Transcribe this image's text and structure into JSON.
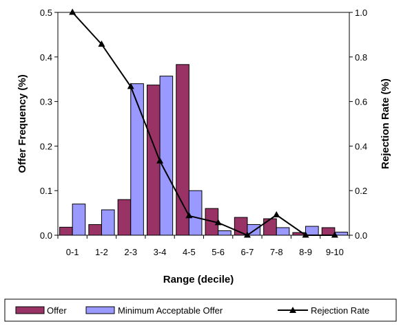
{
  "chart_data": {
    "type": "bar",
    "categories": [
      "0-1",
      "1-2",
      "2-3",
      "3-4",
      "4-5",
      "5-6",
      "6-7",
      "7-8",
      "8-9",
      "9-10"
    ],
    "series": [
      {
        "name": "Offer",
        "type": "bar",
        "axis": "left",
        "color": "#993366",
        "values": [
          0.018,
          0.024,
          0.08,
          0.337,
          0.383,
          0.06,
          0.04,
          0.037,
          0.006,
          0.017
        ]
      },
      {
        "name": "Minimum Acceptable Offer",
        "type": "bar",
        "axis": "left",
        "color": "#9999ff",
        "values": [
          0.07,
          0.057,
          0.34,
          0.357,
          0.1,
          0.01,
          0.024,
          0.017,
          0.02,
          0.007
        ]
      },
      {
        "name": "Rejection Rate",
        "type": "line",
        "axis": "right",
        "color": "#000000",
        "marker": "triangle",
        "values": [
          1.0,
          0.857,
          0.667,
          0.333,
          0.087,
          0.056,
          0.0,
          0.091,
          0.0,
          0.0
        ]
      }
    ],
    "xlabel": "Range (decile)",
    "ylabel": "Offer Frequency (%)",
    "y2label": "Rejection Rate (%)",
    "ylim": [
      0,
      0.5
    ],
    "y2lim": [
      0,
      1.0
    ],
    "yticks": [
      "0.0",
      "0.1",
      "0.2",
      "0.3",
      "0.4",
      "0.5"
    ],
    "y2ticks": [
      "0.0",
      "0.2",
      "0.4",
      "0.6",
      "0.8",
      "1.0"
    ],
    "legend_position": "bottom",
    "grid": false
  }
}
